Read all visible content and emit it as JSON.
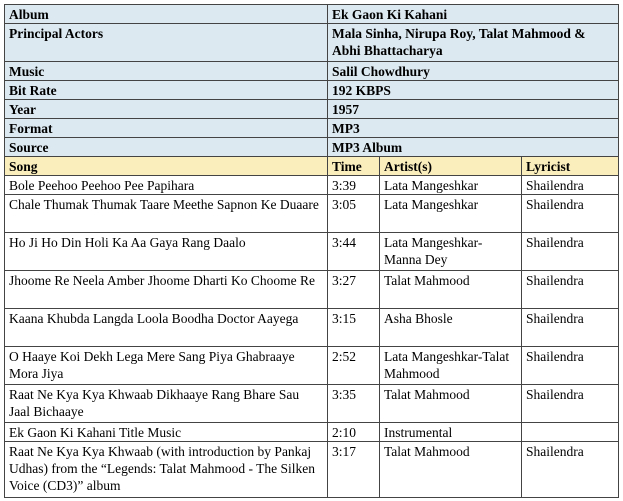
{
  "album_info": [
    {
      "label": "Album",
      "value": "Ek Gaon Ki Kahani"
    },
    {
      "label": "Principal Actors",
      "value": "Mala Sinha, Nirupa Roy, Talat Mahmood & Abhi Bhattacharya"
    },
    {
      "label": "Music",
      "value": "Salil Chowdhury"
    },
    {
      "label": "Bit Rate",
      "value": "192 KBPS"
    },
    {
      "label": "Year",
      "value": "1957"
    },
    {
      "label": "Format",
      "value": "MP3"
    },
    {
      "label": "Source",
      "value": "MP3 Album"
    }
  ],
  "track_headers": {
    "song": "Song",
    "time": "Time",
    "artist": "Artist(s)",
    "lyricist": "Lyricist"
  },
  "tracks": [
    {
      "song": "Bole Peehoo Peehoo Pee Papihara",
      "time": "3:39",
      "artist": "Lata Mangeshkar",
      "lyricist": "Shailendra"
    },
    {
      "song": "Chale Thumak Thumak Taare Meethe Sapnon Ke Duaare",
      "time": "3:05",
      "artist": "Lata Mangeshkar",
      "lyricist": "Shailendra"
    },
    {
      "song": "Ho Ji Ho Din Holi Ka Aa Gaya Rang Daalo",
      "time": "3:44",
      "artist": "Lata Mangeshkar-Manna Dey",
      "lyricist": "Shailendra"
    },
    {
      "song": "Jhoome Re Neela Amber Jhoome Dharti Ko Choome Re",
      "time": "3:27",
      "artist": "Talat Mahmood",
      "lyricist": "Shailendra"
    },
    {
      "song": "Kaana Khubda Langda Loola Boodha Doctor Aayega",
      "time": "3:15",
      "artist": "Asha Bhosle",
      "lyricist": "Shailendra"
    },
    {
      "song": "O Haaye Koi Dekh Lega Mere Sang Piya Ghabraaye Mora Jiya",
      "time": "2:52",
      "artist": "Lata Mangeshkar-Talat Mahmood",
      "lyricist": "Shailendra"
    },
    {
      "song": "Raat Ne Kya Kya Khwaab Dikhaaye Rang Bhare Sau Jaal Bichaaye",
      "time": "3:35",
      "artist": "Talat Mahmood",
      "lyricist": "Shailendra"
    },
    {
      "song": "Ek Gaon Ki Kahani Title Music",
      "time": "2:10",
      "artist": "Instrumental",
      "lyricist": ""
    },
    {
      "song": "Raat Ne Kya Kya Khwaab (with introduction by Pankaj Udhas) from the “Legends: Talat Mahmood - The Silken Voice (CD3)” album",
      "time": "3:17",
      "artist": "Talat Mahmood",
      "lyricist": "Shailendra"
    }
  ]
}
